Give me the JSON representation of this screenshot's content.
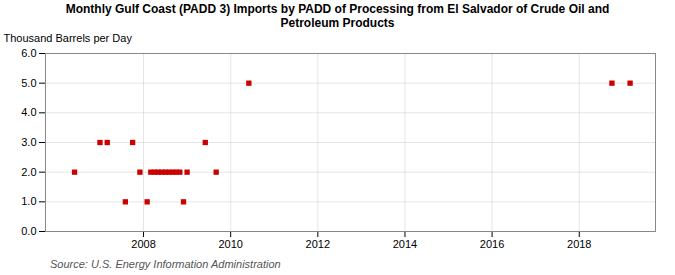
{
  "chart_data": {
    "type": "scatter",
    "title": "Monthly Gulf Coast (PADD 3) Imports by PADD of Processing from El Salvador of Crude Oil and\nPetroleum Products",
    "ylabel": "Thousand Barrels per Day",
    "source": "Source: U.S. Energy Information Administration",
    "color": "#cc0000",
    "marker": "square",
    "grid": true,
    "xlim": [
      2005.75,
      2019.75
    ],
    "xticks": [
      2008,
      2010,
      2012,
      2014,
      2016,
      2018
    ],
    "ylim": [
      0.0,
      6.0
    ],
    "yticks": [
      {
        "value": 0,
        "label": "0.0"
      },
      {
        "value": 1,
        "label": "1.0"
      },
      {
        "value": 2,
        "label": "2.0"
      },
      {
        "value": 3,
        "label": "3.0"
      },
      {
        "value": 4,
        "label": "4.0"
      },
      {
        "value": 5,
        "label": "5.0"
      },
      {
        "value": 6,
        "label": "6.0"
      }
    ],
    "x": [
      2006.417,
      2007.0,
      2007.167,
      2007.583,
      2007.75,
      2007.917,
      2008.083,
      2008.167,
      2008.25,
      2008.333,
      2008.417,
      2008.5,
      2008.583,
      2008.667,
      2008.75,
      2008.833,
      2008.917,
      2009.0,
      2009.417,
      2009.667,
      2010.417,
      2018.75,
      2019.167
    ],
    "values": [
      2.0,
      3.0,
      3.0,
      1.0,
      3.0,
      2.0,
      1.0,
      2.0,
      2.0,
      2.0,
      2.0,
      2.0,
      2.0,
      2.0,
      2.0,
      2.0,
      1.0,
      2.0,
      3.0,
      2.0,
      5.0,
      5.0,
      5.0
    ]
  }
}
